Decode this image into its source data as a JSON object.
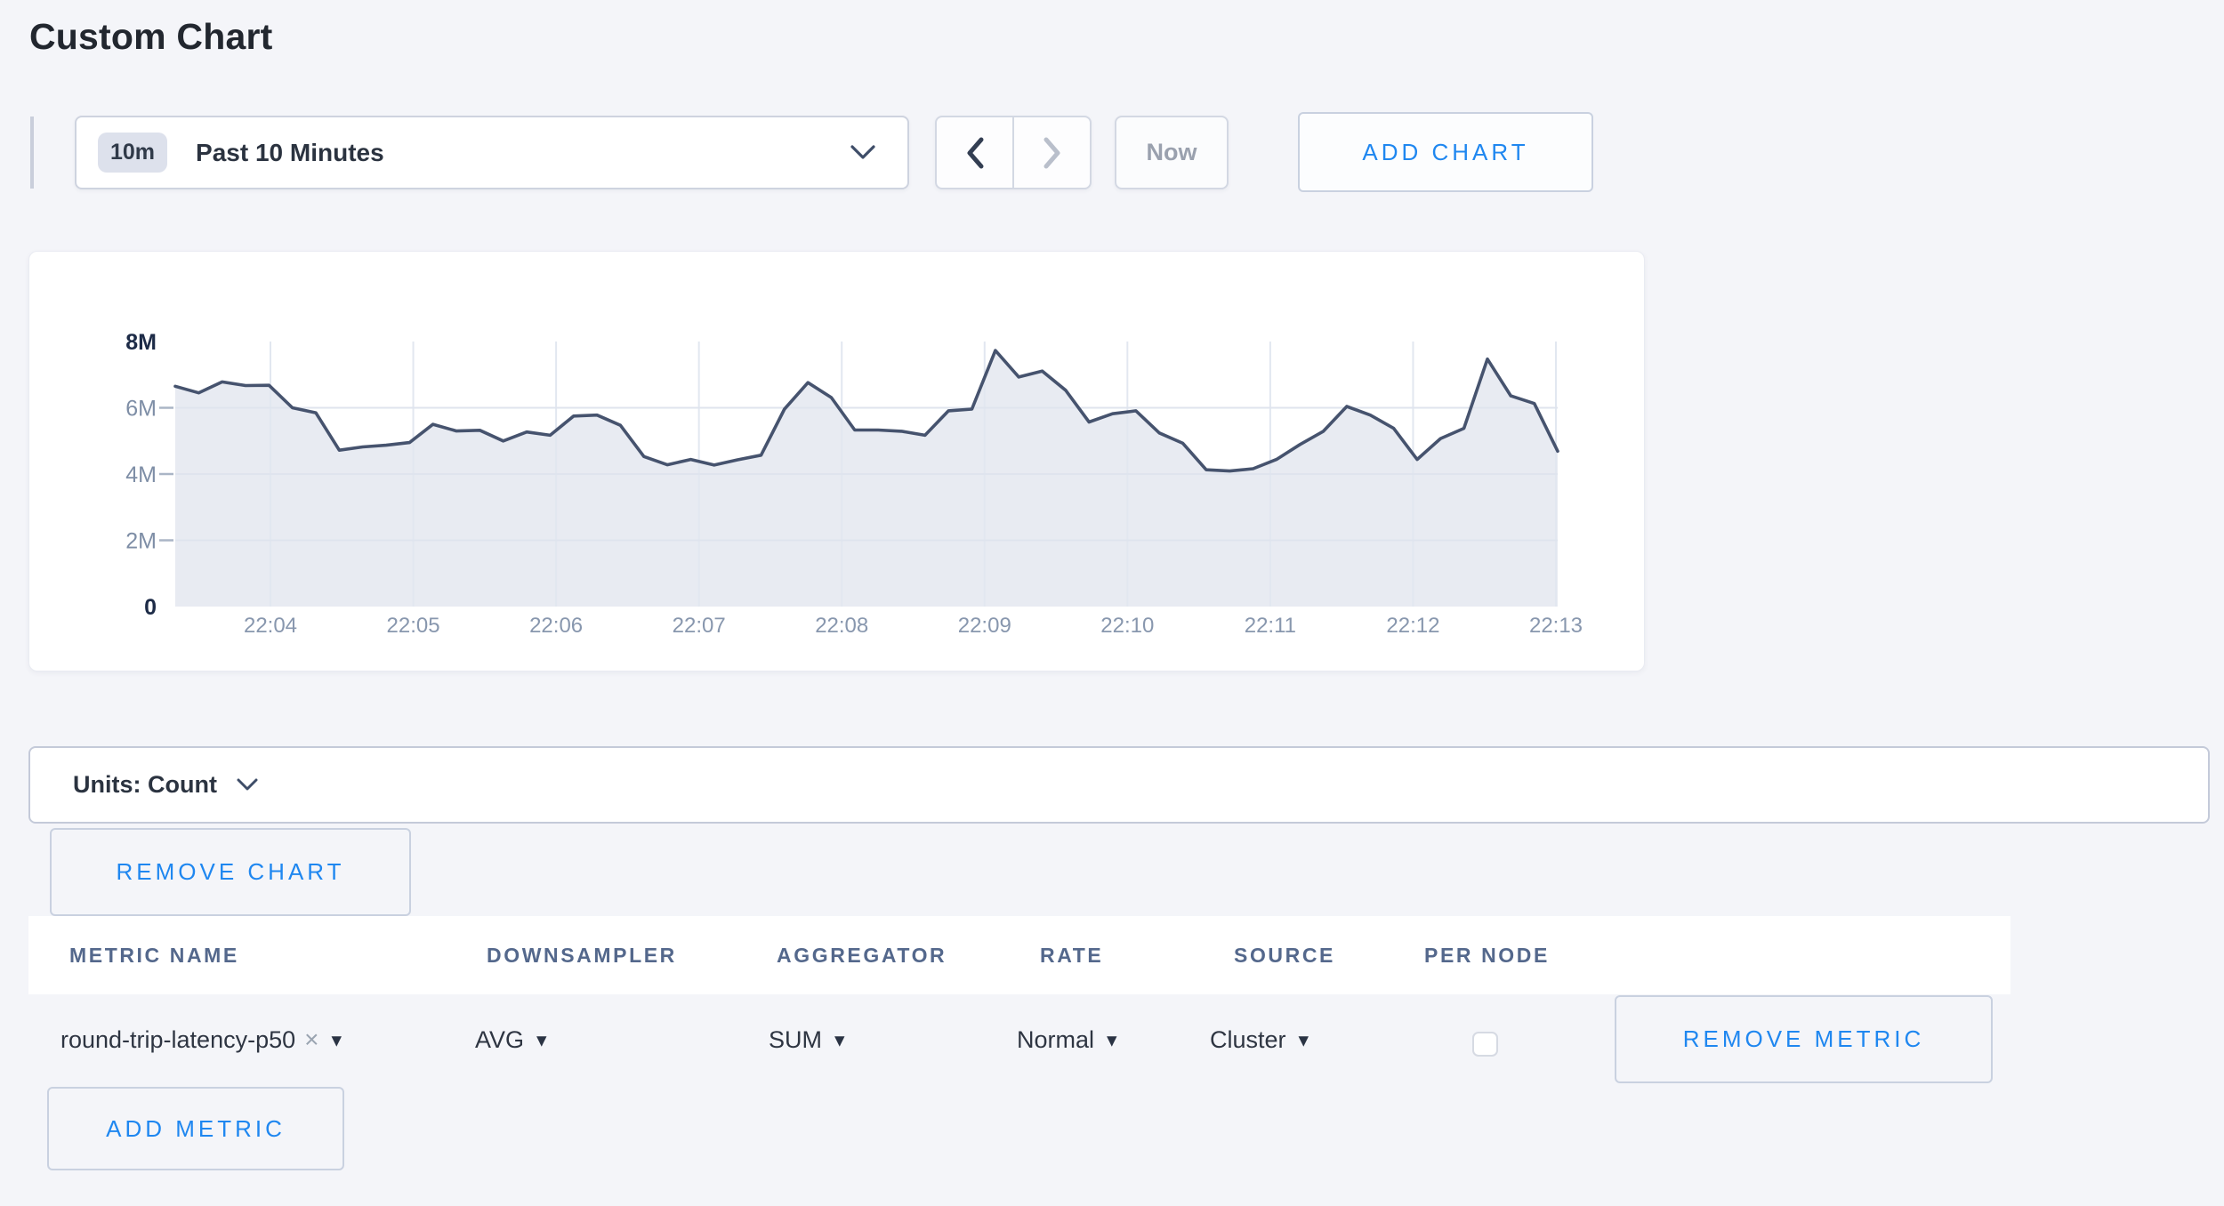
{
  "page": {
    "title": "Custom Chart",
    "background": "#f4f5f9",
    "accent_blue": "#1f87f0"
  },
  "toolbar": {
    "time_range": {
      "badge": "10m",
      "label": "Past 10 Minutes"
    },
    "now_label": "Now",
    "add_chart_label": "ADD CHART"
  },
  "chart_data": {
    "type": "area",
    "title": "",
    "xlabel": "",
    "ylabel": "",
    "unit": "Count",
    "grid": true,
    "legend": "none",
    "x_tick_labels": [
      "22:04",
      "22:05",
      "22:06",
      "22:07",
      "22:08",
      "22:09",
      "22:10",
      "22:11",
      "22:12",
      "22:13"
    ],
    "y_tick_labels": [
      "0",
      "2M",
      "4M",
      "6M",
      "8M"
    ],
    "ylim_millions": [
      0,
      8
    ],
    "line_color": "#46536e",
    "fill_color": "#e8ebf2",
    "grid_color": "#e2e7f0",
    "series": [
      {
        "name": "round-trip-latency-p50",
        "values_millions": [
          6.65,
          6.45,
          6.78,
          6.67,
          6.68,
          6.0,
          5.85,
          4.72,
          4.82,
          4.87,
          4.95,
          5.5,
          5.3,
          5.32,
          5.0,
          5.27,
          5.17,
          5.75,
          5.78,
          5.47,
          4.53,
          4.28,
          4.44,
          4.27,
          4.43,
          4.57,
          5.96,
          6.76,
          6.31,
          5.33,
          5.33,
          5.29,
          5.17,
          5.91,
          5.96,
          7.73,
          6.93,
          7.11,
          6.53,
          5.57,
          5.82,
          5.91,
          5.24,
          4.93,
          4.13,
          4.09,
          4.16,
          4.44,
          4.89,
          5.29,
          6.04,
          5.78,
          5.38,
          4.44,
          5.07,
          5.38,
          7.47,
          6.36,
          6.13,
          4.69
        ]
      }
    ]
  },
  "units_bar": {
    "label": "Units: Count"
  },
  "chart_actions": {
    "remove_chart_label": "REMOVE CHART"
  },
  "metrics_table": {
    "headers": [
      "METRIC NAME",
      "DOWNSAMPLER",
      "AGGREGATOR",
      "RATE",
      "SOURCE",
      "PER NODE"
    ],
    "rows": [
      {
        "metric_name": "round-trip-latency-p50",
        "downsampler": "AVG",
        "aggregator": "SUM",
        "rate": "Normal",
        "source": "Cluster",
        "per_node_checked": false,
        "remove_label": "REMOVE METRIC"
      }
    ],
    "add_metric_label": "ADD METRIC"
  },
  "icons": {
    "close": "×",
    "caret_down": "▾"
  }
}
